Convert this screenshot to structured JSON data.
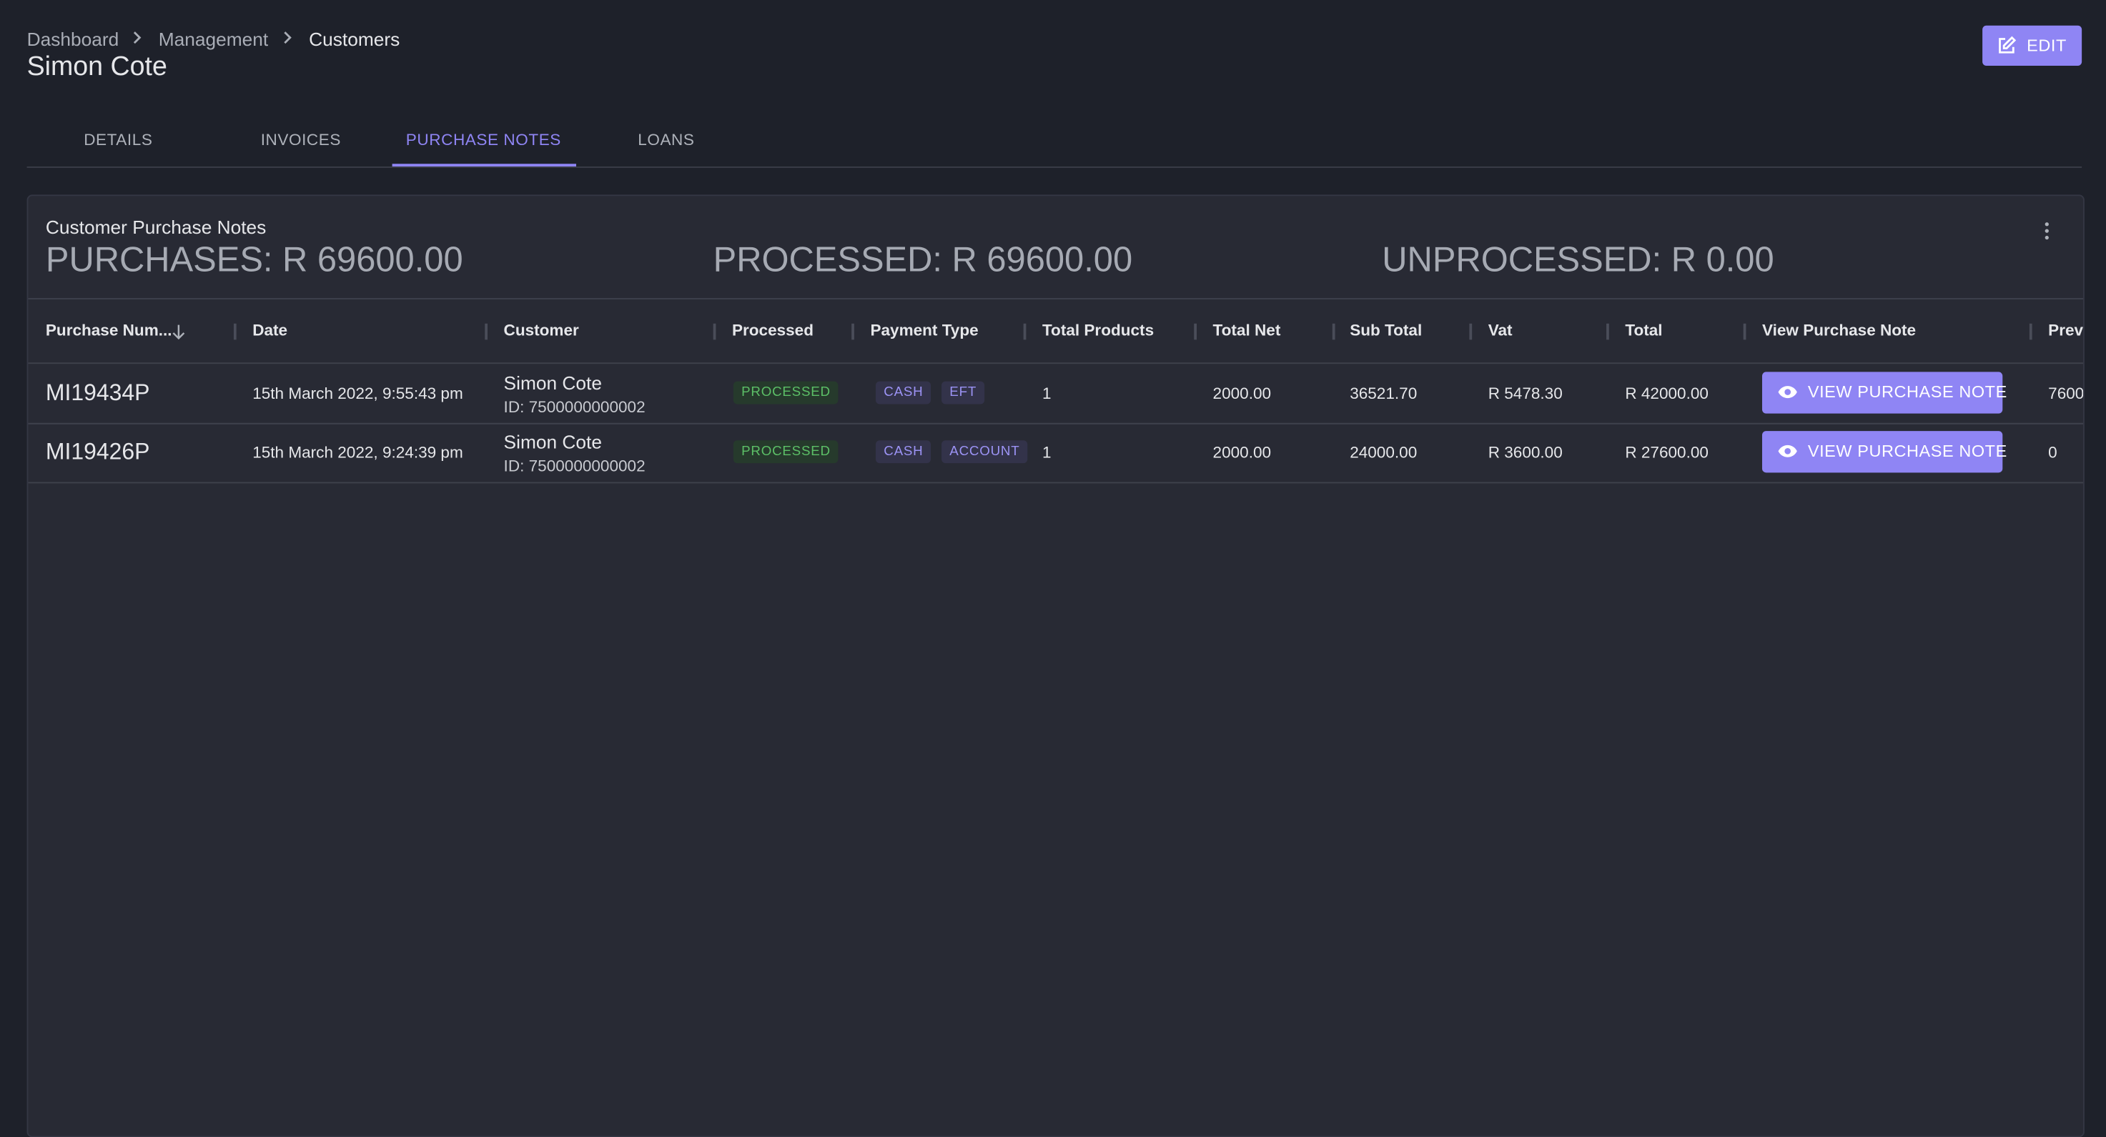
{
  "breadcrumb": [
    "Dashboard",
    "Management",
    "Customers"
  ],
  "title": "Simon Cote",
  "edit_button": "EDIT",
  "tabs": [
    "DETAILS",
    "INVOICES",
    "PURCHASE NOTES",
    "LOANS"
  ],
  "card": {
    "title": "Customer Purchase Notes",
    "stats": [
      "PURCHASES: R 69600.00",
      "PROCESSED: R 69600.00",
      "UNPROCESSED: R 0.00"
    ],
    "table": {
      "columns": [
        "Purchase Num...",
        "Date",
        "Customer",
        "Processed",
        "Payment Type",
        "Total Products",
        "Total Net",
        "Sub Total",
        "Vat",
        "Total",
        "View Purchase Note",
        "Prev"
      ],
      "rows": [
        {
          "number": "MI19434P",
          "date": "15th March 2022, 9:55:43 pm",
          "customer_name": "Simon Cote",
          "customer_id": "ID: 7500000000002",
          "processed": "PROCESSED",
          "payment_types": [
            "CASH",
            "EFT"
          ],
          "total_products": "1",
          "total_net": "2000.00",
          "sub_total": "36521.70",
          "vat": "R 5478.30",
          "total": "R 42000.00",
          "action": "VIEW PURCHASE NOTE",
          "prev": "7600"
        },
        {
          "number": "MI19426P",
          "date": "15th March 2022, 9:24:39 pm",
          "customer_name": "Simon Cote",
          "customer_id": "ID: 7500000000002",
          "processed": "PROCESSED",
          "payment_types": [
            "CASH",
            "ACCOUNT"
          ],
          "total_products": "1",
          "total_net": "2000.00",
          "sub_total": "24000.00",
          "vat": "R 3600.00",
          "total": "R 27600.00",
          "action": "VIEW PURCHASE NOTE",
          "prev": "0"
        }
      ]
    }
  }
}
